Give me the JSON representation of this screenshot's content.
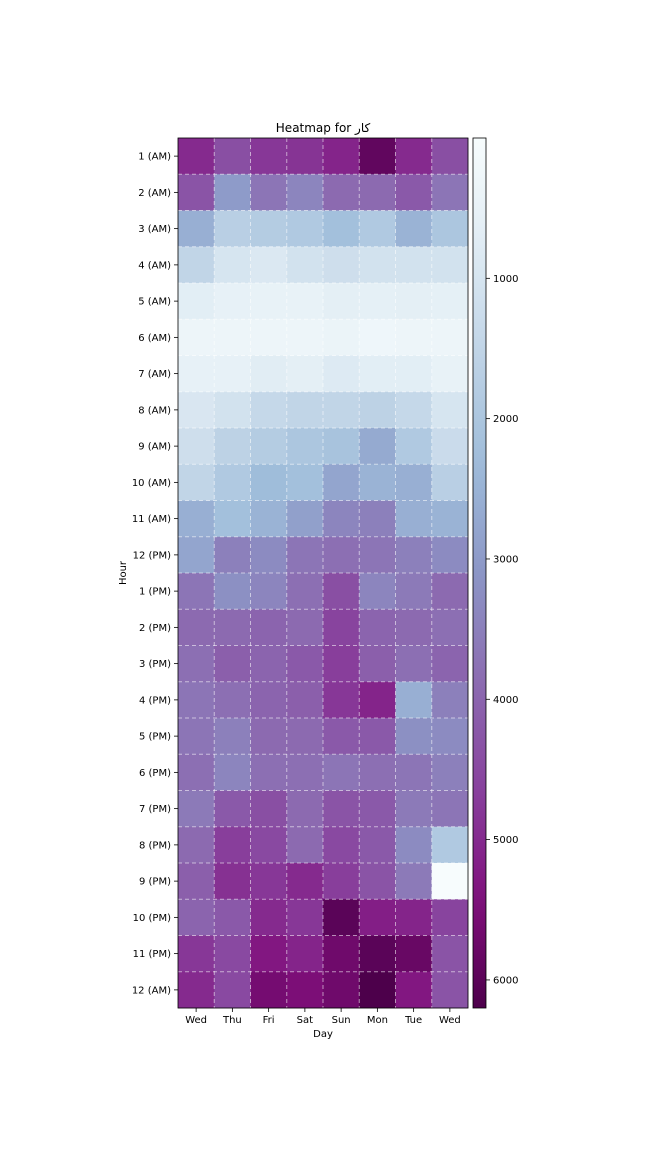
{
  "chart_data": {
    "type": "heatmap",
    "title": "Heatmap for کار",
    "xlabel": "Day",
    "ylabel": "Hour",
    "x_categories": [
      "Wed",
      "Thu",
      "Fri",
      "Sat",
      "Sun",
      "Mon",
      "Tue",
      "Wed"
    ],
    "y_categories": [
      "1 (AM)",
      "2 (AM)",
      "3 (AM)",
      "4 (AM)",
      "5 (AM)",
      "6 (AM)",
      "7 (AM)",
      "8 (AM)",
      "9 (AM)",
      "10 (AM)",
      "11 (AM)",
      "12 (PM)",
      "1 (PM)",
      "2 (PM)",
      "3 (PM)",
      "4 (PM)",
      "5 (PM)",
      "6 (PM)",
      "7 (PM)",
      "8 (PM)",
      "9 (PM)",
      "10 (PM)",
      "11 (PM)",
      "12 (AM)"
    ],
    "values": [
      [
        5000,
        4400,
        4800,
        4850,
        5100,
        5900,
        5000,
        4400
      ],
      [
        4300,
        3000,
        3700,
        3400,
        3900,
        3900,
        4200,
        3700
      ],
      [
        2600,
        1700,
        1800,
        1900,
        2200,
        1900,
        2500,
        2000
      ],
      [
        1500,
        1000,
        900,
        1100,
        1200,
        1100,
        1100,
        1100
      ],
      [
        700,
        550,
        500,
        500,
        650,
        600,
        650,
        600
      ],
      [
        350,
        350,
        350,
        330,
        400,
        300,
        330,
        350
      ],
      [
        550,
        550,
        750,
        650,
        850,
        700,
        700,
        500
      ],
      [
        950,
        1100,
        1400,
        1500,
        1500,
        1600,
        1400,
        1000
      ],
      [
        1200,
        1600,
        1800,
        2000,
        2100,
        2700,
        1900,
        1300
      ],
      [
        1500,
        1900,
        2300,
        2200,
        2800,
        2500,
        2600,
        1700
      ],
      [
        2600,
        2200,
        2500,
        2900,
        3400,
        3500,
        2600,
        2500
      ],
      [
        2800,
        3500,
        3300,
        3700,
        3800,
        3700,
        3500,
        3300
      ],
      [
        3700,
        3200,
        3400,
        3800,
        4400,
        3400,
        3600,
        3900
      ],
      [
        3900,
        3900,
        4000,
        3900,
        4600,
        4000,
        3900,
        3800
      ],
      [
        3800,
        4100,
        4000,
        4200,
        4700,
        4100,
        3800,
        4000
      ],
      [
        3700,
        3800,
        4000,
        4100,
        4800,
        5100,
        2600,
        3500
      ],
      [
        3700,
        3500,
        3900,
        3900,
        4200,
        4200,
        3200,
        3300
      ],
      [
        3800,
        3400,
        3800,
        3800,
        3700,
        3800,
        3700,
        3500
      ],
      [
        3600,
        4200,
        4400,
        3900,
        4300,
        4200,
        3600,
        3700
      ],
      [
        3900,
        4700,
        4500,
        3900,
        4500,
        4200,
        3300,
        1900
      ],
      [
        4100,
        4900,
        4800,
        5000,
        4700,
        4300,
        3600,
        0
      ],
      [
        4000,
        4200,
        5000,
        4800,
        6000,
        5200,
        5100,
        4600
      ],
      [
        4800,
        4500,
        5300,
        5100,
        5700,
        6000,
        5800,
        4300
      ],
      [
        5000,
        4500,
        5600,
        5500,
        5700,
        6200,
        5300,
        4300
      ]
    ],
    "colormap": "BuPu",
    "colorbar": {
      "min": 0,
      "max": 6200,
      "ticks": [
        1000,
        2000,
        3000,
        4000,
        5000,
        6000
      ],
      "inverted": true
    },
    "grid": true,
    "grid_style": "dashed"
  }
}
